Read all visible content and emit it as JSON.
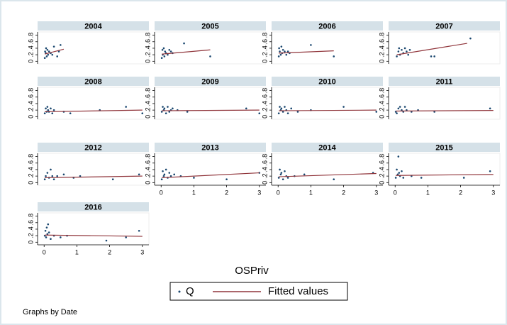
{
  "chart_data": {
    "type": "scatter",
    "xlabel": "OSPriv",
    "note": "Graphs by Date",
    "series": [
      {
        "name": "Q",
        "color": "#1a476f"
      },
      {
        "name": "Fitted values",
        "color": "#90353b"
      }
    ],
    "xlim": [
      -0.2,
      3.2
    ],
    "xticks": [
      0,
      1,
      2,
      3
    ],
    "ylim": [
      -0.08,
      0.9
    ],
    "yticks": [
      0,
      {
        "value": 0.2,
        "label": ".2"
      },
      {
        "value": 0.4,
        "label": ".4"
      },
      {
        "value": 0.6,
        "label": ".6"
      },
      {
        "value": 0.8,
        "label": ".8"
      }
    ],
    "columns": 4,
    "panels": [
      {
        "title": "2004",
        "series": [
          {
            "x": [
              0.02,
              0.03,
              0.05,
              0.06,
              0.08,
              0.1,
              0.12,
              0.15,
              0.2,
              0.25,
              0.3,
              0.4,
              0.45,
              0.5
            ],
            "values": [
              0.1,
              0.3,
              0.25,
              0.4,
              0.15,
              0.35,
              0.2,
              0.3,
              0.25,
              0.2,
              0.45,
              0.15,
              0.3,
              0.5
            ]
          },
          {
            "x": [
              0.02,
              0.6
            ],
            "values": [
              0.22,
              0.37
            ]
          }
        ]
      },
      {
        "title": "2005",
        "series": [
          {
            "x": [
              0.02,
              0.04,
              0.05,
              0.08,
              0.1,
              0.12,
              0.15,
              0.2,
              0.25,
              0.3,
              0.35,
              0.7,
              1.5
            ],
            "values": [
              0.1,
              0.35,
              0.2,
              0.4,
              0.15,
              0.3,
              0.25,
              0.2,
              0.35,
              0.3,
              0.25,
              0.55,
              0.15
            ]
          },
          {
            "x": [
              0.02,
              1.5
            ],
            "values": [
              0.22,
              0.35
            ]
          }
        ]
      },
      {
        "title": "2006",
        "series": [
          {
            "x": [
              0.02,
              0.03,
              0.05,
              0.08,
              0.1,
              0.12,
              0.15,
              0.2,
              0.25,
              0.3,
              0.35,
              1.0,
              1.7
            ],
            "values": [
              0.15,
              0.4,
              0.3,
              0.2,
              0.45,
              0.25,
              0.35,
              0.3,
              0.2,
              0.3,
              0.25,
              0.5,
              0.15
            ]
          },
          {
            "x": [
              0.02,
              1.7
            ],
            "values": [
              0.25,
              0.32
            ]
          }
        ]
      },
      {
        "title": "2007",
        "series": [
          {
            "x": [
              0.05,
              0.1,
              0.12,
              0.15,
              0.2,
              0.25,
              0.3,
              0.35,
              0.4,
              0.45,
              1.1,
              1.2,
              2.3
            ],
            "values": [
              0.15,
              0.3,
              0.4,
              0.2,
              0.35,
              0.25,
              0.4,
              0.3,
              0.2,
              0.35,
              0.15,
              0.15,
              0.7
            ]
          },
          {
            "x": [
              0.05,
              2.2
            ],
            "values": [
              0.2,
              0.55
            ]
          }
        ]
      },
      {
        "title": "2008",
        "series": [
          {
            "x": [
              0.02,
              0.05,
              0.08,
              0.1,
              0.12,
              0.15,
              0.2,
              0.25,
              0.3,
              0.6,
              0.8,
              1.7,
              2.5,
              3.0
            ],
            "values": [
              0.1,
              0.25,
              0.15,
              0.3,
              0.2,
              0.15,
              0.25,
              0.1,
              0.2,
              0.15,
              0.1,
              0.2,
              0.3,
              0.1
            ]
          },
          {
            "x": [
              0.02,
              3.0
            ],
            "values": [
              0.15,
              0.2
            ]
          }
        ]
      },
      {
        "title": "2009",
        "series": [
          {
            "x": [
              0.02,
              0.05,
              0.08,
              0.1,
              0.15,
              0.2,
              0.25,
              0.3,
              0.35,
              0.5,
              0.8,
              2.6,
              3.0
            ],
            "values": [
              0.15,
              0.3,
              0.2,
              0.25,
              0.1,
              0.3,
              0.15,
              0.2,
              0.25,
              0.2,
              0.15,
              0.25,
              0.1
            ]
          },
          {
            "x": [
              0.02,
              3.0
            ],
            "values": [
              0.18,
              0.2
            ]
          }
        ]
      },
      {
        "title": "2010",
        "series": [
          {
            "x": [
              0.02,
              0.05,
              0.08,
              0.1,
              0.15,
              0.2,
              0.25,
              0.3,
              0.4,
              0.6,
              1.0,
              2.0,
              3.0
            ],
            "values": [
              0.1,
              0.3,
              0.2,
              0.25,
              0.15,
              0.3,
              0.2,
              0.1,
              0.25,
              0.15,
              0.2,
              0.3,
              0.15
            ]
          },
          {
            "x": [
              0.02,
              3.0
            ],
            "values": [
              0.18,
              0.2
            ]
          }
        ]
      },
      {
        "title": "2011",
        "series": [
          {
            "x": [
              0.02,
              0.05,
              0.1,
              0.15,
              0.2,
              0.25,
              0.3,
              0.35,
              0.5,
              0.7,
              1.2,
              2.9
            ],
            "values": [
              0.15,
              0.1,
              0.25,
              0.3,
              0.2,
              0.15,
              0.3,
              0.2,
              0.15,
              0.2,
              0.15,
              0.25
            ]
          },
          {
            "x": [
              0.02,
              3.0
            ],
            "values": [
              0.17,
              0.19
            ]
          }
        ]
      },
      {
        "title": "2012",
        "series": [
          {
            "x": [
              0.02,
              0.05,
              0.1,
              0.15,
              0.2,
              0.25,
              0.3,
              0.4,
              0.6,
              0.9,
              1.1,
              2.1,
              2.9
            ],
            "values": [
              0.1,
              0.2,
              0.3,
              0.15,
              0.4,
              0.2,
              0.1,
              0.2,
              0.25,
              0.15,
              0.2,
              0.1,
              0.25
            ]
          },
          {
            "x": [
              0.02,
              3.0
            ],
            "values": [
              0.15,
              0.2
            ]
          }
        ]
      },
      {
        "title": "2013",
        "series": [
          {
            "x": [
              0.02,
              0.05,
              0.08,
              0.1,
              0.15,
              0.2,
              0.25,
              0.3,
              0.4,
              0.6,
              1.0,
              2.0,
              3.0
            ],
            "values": [
              0.1,
              0.35,
              0.2,
              0.25,
              0.4,
              0.15,
              0.3,
              0.2,
              0.25,
              0.2,
              0.15,
              0.1,
              0.3
            ]
          },
          {
            "x": [
              0.02,
              3.0
            ],
            "values": [
              0.15,
              0.3
            ]
          }
        ]
      },
      {
        "title": "2014",
        "series": [
          {
            "x": [
              0.02,
              0.05,
              0.08,
              0.1,
              0.15,
              0.2,
              0.25,
              0.3,
              0.5,
              0.8,
              1.7,
              2.9
            ],
            "values": [
              0.15,
              0.4,
              0.25,
              0.3,
              0.1,
              0.35,
              0.2,
              0.15,
              0.2,
              0.25,
              0.1,
              0.3
            ]
          },
          {
            "x": [
              0.02,
              3.0
            ],
            "values": [
              0.18,
              0.28
            ]
          }
        ]
      },
      {
        "title": "2015",
        "series": [
          {
            "x": [
              0.02,
              0.05,
              0.08,
              0.1,
              0.12,
              0.15,
              0.2,
              0.25,
              0.5,
              0.8,
              2.1,
              2.9
            ],
            "values": [
              0.15,
              0.4,
              0.25,
              0.8,
              0.3,
              0.2,
              0.35,
              0.15,
              0.2,
              0.15,
              0.15,
              0.35
            ]
          },
          {
            "x": [
              0.02,
              3.0
            ],
            "values": [
              0.22,
              0.25
            ]
          }
        ]
      },
      {
        "title": "2016",
        "series": [
          {
            "x": [
              0.02,
              0.04,
              0.06,
              0.08,
              0.1,
              0.12,
              0.15,
              0.2,
              0.3,
              0.5,
              0.7,
              1.9,
              2.5,
              2.9
            ],
            "values": [
              0.2,
              0.35,
              0.15,
              0.45,
              0.25,
              0.55,
              0.3,
              0.1,
              0.2,
              0.15,
              0.2,
              0.05,
              0.15,
              0.35
            ]
          },
          {
            "x": [
              0.02,
              3.0
            ],
            "values": [
              0.22,
              0.18
            ]
          }
        ]
      }
    ]
  }
}
